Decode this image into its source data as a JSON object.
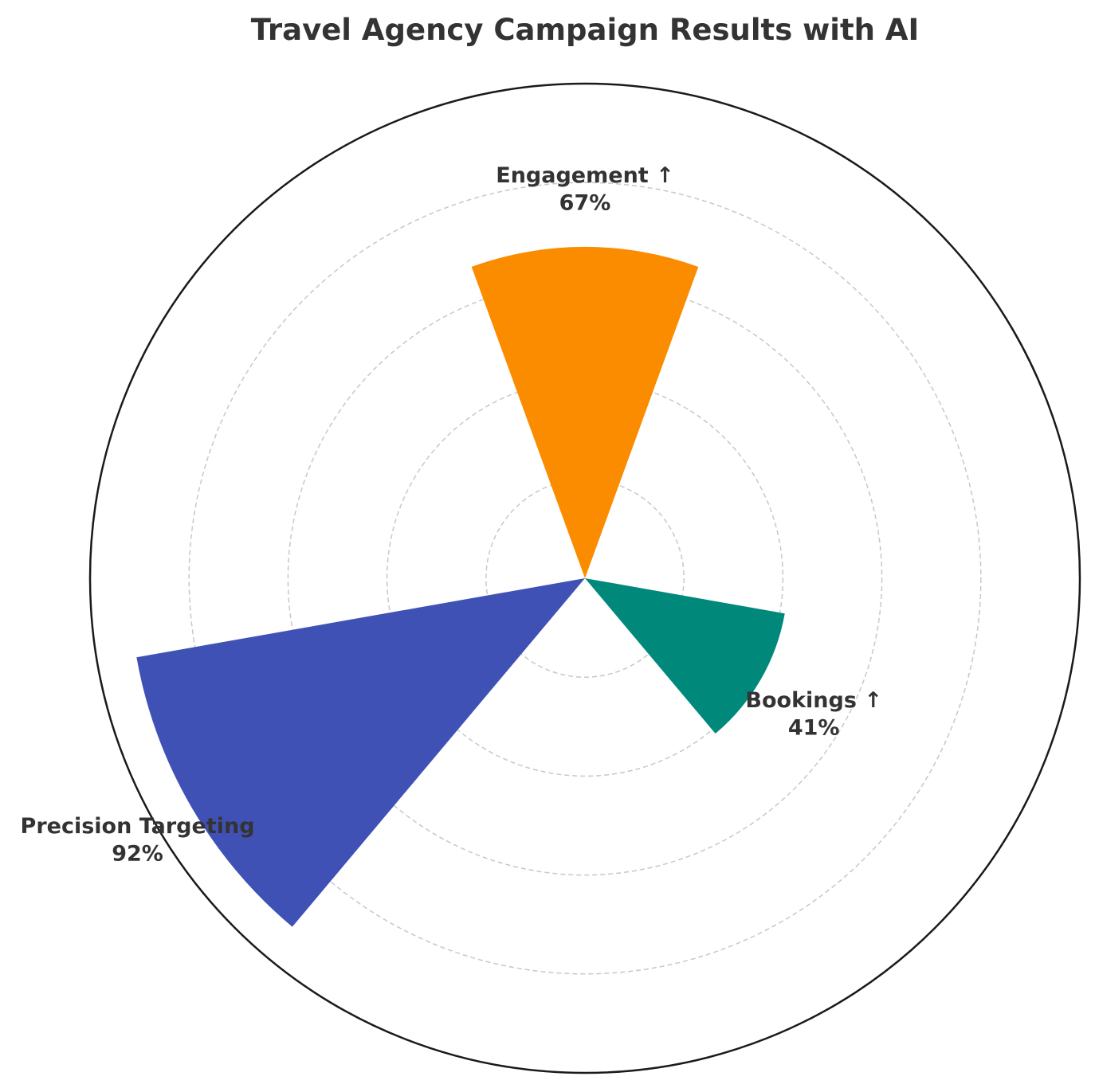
{
  "chart_data": {
    "type": "polar-bar",
    "title": "Travel Agency Campaign Results with AI",
    "categories": [
      "Engagement ↑",
      "Bookings ↑",
      "Precision Targeting"
    ],
    "values": [
      67,
      41,
      92
    ],
    "value_labels": [
      "67%",
      "41%",
      "92%"
    ],
    "colors": [
      "#FB8C00",
      "#00897B",
      "#3F51B5"
    ],
    "center_angles_deg": [
      0,
      120,
      240
    ],
    "width_deg": 40,
    "rlim": [
      0,
      100
    ],
    "r_grid": [
      20,
      40,
      60,
      80
    ],
    "grid": true,
    "legend": "none"
  }
}
